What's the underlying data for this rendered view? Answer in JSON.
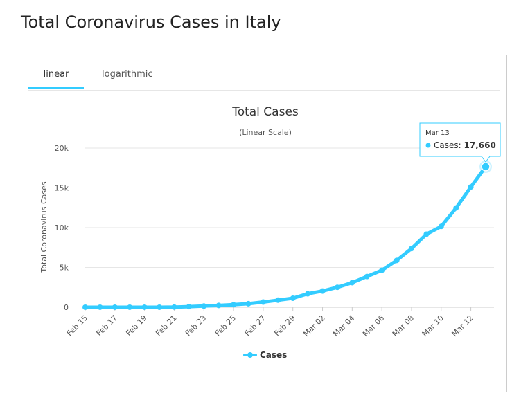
{
  "page": {
    "title": "Total Coronavirus Cases in Italy"
  },
  "tabs": [
    {
      "label": "linear",
      "active": true
    },
    {
      "label": "logarithmic",
      "active": false
    }
  ],
  "colors": {
    "accent": "#33ccff",
    "series": "#33ccff"
  },
  "tooltip": {
    "date": "Mar 13",
    "series_label": "Cases:",
    "value": "17,660"
  },
  "chart_data": {
    "type": "line",
    "title": "Total Cases",
    "subtitle": "(Linear Scale)",
    "ylabel": "Total Coronavirus Cases",
    "xlabel": "",
    "ylim": [
      0,
      20000
    ],
    "yticks": [
      0,
      5000,
      10000,
      15000,
      20000
    ],
    "ytick_labels": [
      "0",
      "5k",
      "10k",
      "15k",
      "20k"
    ],
    "x": [
      "Feb 15",
      "Feb 16",
      "Feb 17",
      "Feb 18",
      "Feb 19",
      "Feb 20",
      "Feb 21",
      "Feb 22",
      "Feb 23",
      "Feb 24",
      "Feb 25",
      "Feb 26",
      "Feb 27",
      "Feb 28",
      "Feb 29",
      "Mar 01",
      "Mar 02",
      "Mar 03",
      "Mar 04",
      "Mar 05",
      "Mar 06",
      "Mar 07",
      "Mar 08",
      "Mar 09",
      "Mar 10",
      "Mar 11",
      "Mar 12",
      "Mar 13"
    ],
    "xtick_labels": [
      "Feb 15",
      "Feb 17",
      "Feb 19",
      "Feb 21",
      "Feb 23",
      "Feb 25",
      "Feb 27",
      "Feb 29",
      "Mar 02",
      "Mar 04",
      "Mar 06",
      "Mar 08",
      "Mar 10",
      "Mar 12"
    ],
    "series": [
      {
        "name": "Cases",
        "values": [
          3,
          3,
          3,
          3,
          3,
          3,
          20,
          79,
          150,
          227,
          320,
          445,
          650,
          888,
          1128,
          1694,
          2036,
          2502,
          3089,
          3858,
          4636,
          5883,
          7375,
          9172,
          10149,
          12462,
          15113,
          17660
        ]
      }
    ],
    "legend": "bottom-center",
    "grid": "horizontal"
  }
}
